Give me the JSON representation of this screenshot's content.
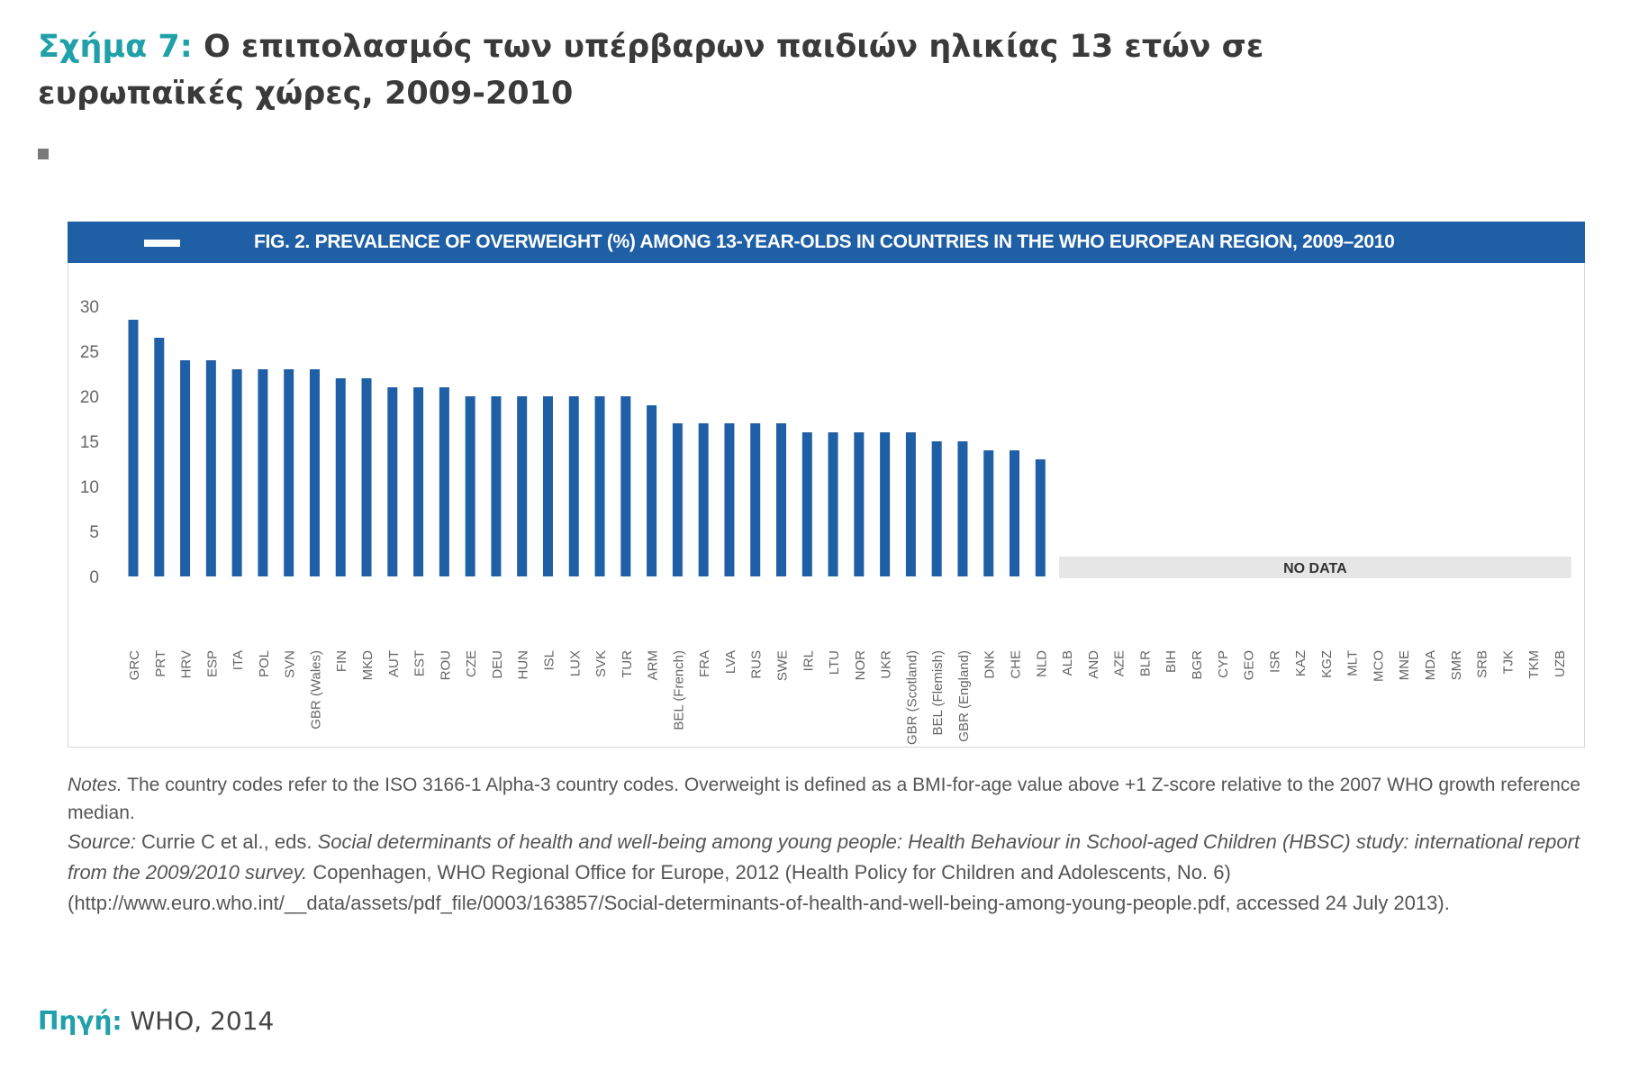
{
  "heading": {
    "fig_label": "Σχήμα 7:",
    "title": "Ο επιπολασμός των υπέρβαρων παιδιών ηλικίας 13 ετών σε ευρωπαϊκές χώρες, 2009-2010"
  },
  "chart_data": {
    "type": "bar",
    "title": "FIG. 2. PREVALENCE OF OVERWEIGHT (%) AMONG 13-YEAR-OLDS IN COUNTRIES IN THE WHO EUROPEAN REGION, 2009–2010",
    "xlabel": "",
    "ylabel": "",
    "ylim": [
      0,
      30
    ],
    "yticks": [
      0,
      5,
      10,
      15,
      20,
      25,
      30
    ],
    "grid": false,
    "bar_color": "#1f5fa6",
    "categories": [
      "GRC",
      "PRT",
      "HRV",
      "ESP",
      "ITA",
      "POL",
      "SVN",
      "GBR (Wales)",
      "FIN",
      "MKD",
      "AUT",
      "EST",
      "ROU",
      "CZE",
      "DEU",
      "HUN",
      "ISL",
      "LUX",
      "SVK",
      "TUR",
      "ARM",
      "BEL (French)",
      "FRA",
      "LVA",
      "RUS",
      "SWE",
      "IRL",
      "LTU",
      "NOR",
      "UKR",
      "GBR (Scotland)",
      "BEL (Flemish)",
      "GBR (England)",
      "DNK",
      "CHE",
      "NLD"
    ],
    "values": [
      28.5,
      26.5,
      24,
      24,
      23,
      23,
      23,
      23,
      22,
      22,
      21,
      21,
      21,
      20,
      20,
      20,
      20,
      20,
      20,
      20,
      19,
      17,
      17,
      17,
      17,
      17,
      16,
      16,
      16,
      16,
      16,
      15,
      15,
      14,
      14,
      13
    ],
    "no_data_label": "NO DATA",
    "no_data_categories": [
      "ALB",
      "AND",
      "AZE",
      "BLR",
      "BIH",
      "BGR",
      "CYP",
      "GEO",
      "ISR",
      "KAZ",
      "KGZ",
      "MLT",
      "MCO",
      "MNE",
      "MDA",
      "SMR",
      "SRB",
      "TJK",
      "TKM",
      "UZB"
    ]
  },
  "notes": {
    "notes_label": "Notes.",
    "notes_text": "The country codes refer to the ISO 3166-1 Alpha-3 country codes. Overweight is defined as a BMI-for-age value above +1 Z-score relative to the 2007 WHO growth reference median.",
    "source_label": "Source:",
    "source_pre": "Currie C et al., eds.",
    "source_title": "Social determinants of health and well-being among young people: Health Behaviour in School-aged Children (HBSC) study: international report from the 2009/2010 survey.",
    "source_post": "Copenhagen, WHO Regional Office for Europe, 2012 (Health Policy for Children and Adolescents, No. 6) (http://www.euro.who.int/__data/assets/pdf_file/0003/163857/Social-determinants-of-health-and-well-being-among-young-people.pdf, accessed 24 July 2013)."
  },
  "footer": {
    "source_label": "Πηγή:",
    "source_value": "WHO, 2014"
  }
}
